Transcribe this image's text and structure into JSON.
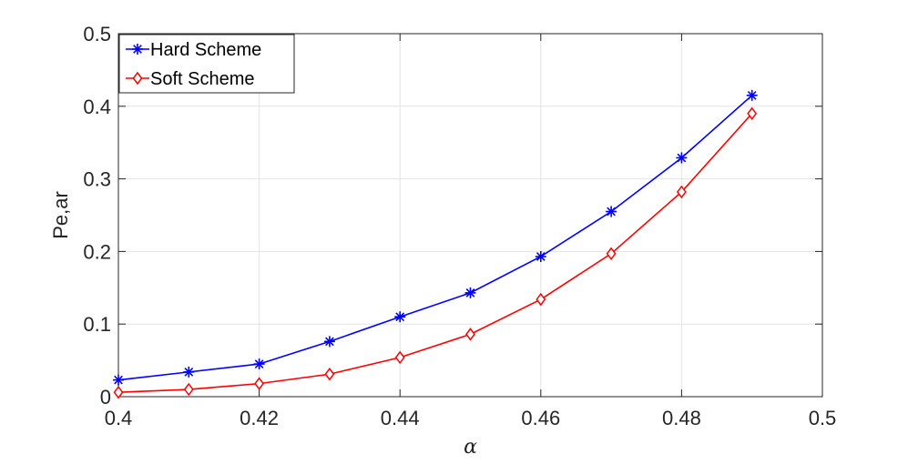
{
  "chart_data": {
    "type": "line",
    "title": "",
    "xlabel": "α",
    "ylabel": "Pe,ar",
    "xlim": [
      0.4,
      0.5
    ],
    "ylim": [
      0,
      0.5
    ],
    "x_ticks": [
      "0.4",
      "0.42",
      "0.44",
      "0.46",
      "0.48",
      "0.5"
    ],
    "x_tick_values": [
      0.4,
      0.42,
      0.44,
      0.46,
      0.48,
      0.5
    ],
    "y_ticks": [
      "0",
      "0.1",
      "0.2",
      "0.3",
      "0.4",
      "0.5"
    ],
    "y_tick_values": [
      0,
      0.1,
      0.2,
      0.3,
      0.4,
      0.5
    ],
    "grid": true,
    "legend_position": "top-left",
    "x": [
      0.4,
      0.41,
      0.42,
      0.43,
      0.44,
      0.45,
      0.46,
      0.47,
      0.48,
      0.49
    ],
    "series": [
      {
        "name": "Hard Scheme",
        "color": "#0000ff",
        "marker": "asterisk",
        "values": [
          0.023,
          0.034,
          0.045,
          0.076,
          0.11,
          0.143,
          0.193,
          0.255,
          0.329,
          0.415
        ]
      },
      {
        "name": "Soft Scheme",
        "color": "#ff0000",
        "marker": "diamond",
        "values": [
          0.006,
          0.01,
          0.018,
          0.031,
          0.054,
          0.086,
          0.134,
          0.197,
          0.282,
          0.39
        ]
      }
    ]
  }
}
